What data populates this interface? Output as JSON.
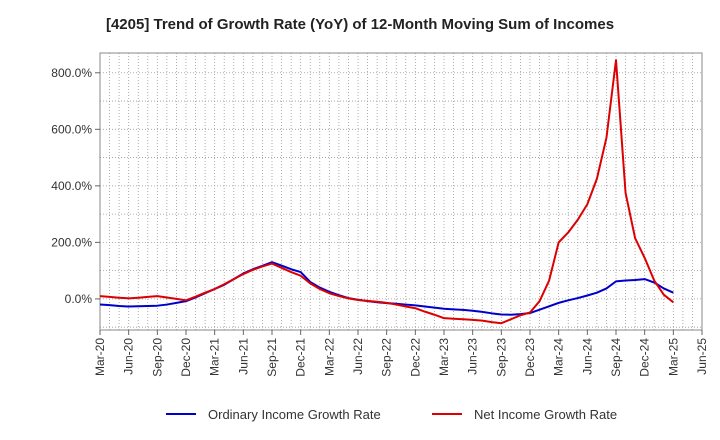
{
  "chart_data": {
    "type": "line",
    "title": "[4205]  Trend of Growth Rate (YoY) of 12-Month Moving Sum of Incomes",
    "xlabel": "",
    "ylabel": "",
    "ylim": [
      -110,
      870
    ],
    "y_ticks": [
      0,
      200,
      400,
      600,
      800
    ],
    "y_tick_labels": [
      "0.0%",
      "200.0%",
      "400.0%",
      "600.0%",
      "800.0%"
    ],
    "x_tick_labels": [
      "Mar-20",
      "Jun-20",
      "Sep-20",
      "Dec-20",
      "Mar-21",
      "Jun-21",
      "Sep-21",
      "Dec-21",
      "Mar-22",
      "Jun-22",
      "Sep-22",
      "Dec-22",
      "Mar-23",
      "Jun-23",
      "Sep-23",
      "Dec-23",
      "Mar-24",
      "Jun-24",
      "Sep-24",
      "Dec-24",
      "Mar-25",
      "Jun-25"
    ],
    "x": [
      "Mar-20",
      "Apr-20",
      "May-20",
      "Jun-20",
      "Jul-20",
      "Aug-20",
      "Sep-20",
      "Oct-20",
      "Nov-20",
      "Dec-20",
      "Jan-21",
      "Feb-21",
      "Mar-21",
      "Apr-21",
      "May-21",
      "Jun-21",
      "Jul-21",
      "Aug-21",
      "Sep-21",
      "Oct-21",
      "Nov-21",
      "Dec-21",
      "Jan-22",
      "Feb-22",
      "Mar-22",
      "Apr-22",
      "May-22",
      "Jun-22",
      "Jul-22",
      "Aug-22",
      "Sep-22",
      "Oct-22",
      "Nov-22",
      "Dec-22",
      "Jan-23",
      "Feb-23",
      "Mar-23",
      "Apr-23",
      "May-23",
      "Jun-23",
      "Jul-23",
      "Aug-23",
      "Sep-23",
      "Oct-23",
      "Nov-23",
      "Dec-23",
      "Jan-24",
      "Feb-24",
      "Mar-24",
      "Apr-24",
      "May-24",
      "Jun-24",
      "Jul-24",
      "Aug-24",
      "Sep-24",
      "Oct-24",
      "Nov-24",
      "Dec-24",
      "Jan-25",
      "Feb-25",
      "Mar-25"
    ],
    "grid": true,
    "legend_position": "bottom",
    "series": [
      {
        "name": "Ordinary Income Growth Rate",
        "color": "#0000cc",
        "values": [
          -20,
          -22,
          -25,
          -27,
          -26,
          -25,
          -24,
          -20,
          -14,
          -8,
          5,
          20,
          35,
          50,
          70,
          90,
          105,
          117,
          130,
          118,
          105,
          95,
          60,
          40,
          25,
          13,
          3,
          -3,
          -8,
          -12,
          -15,
          -17,
          -20,
          -23,
          -27,
          -31,
          -35,
          -37,
          -39,
          -42,
          -46,
          -51,
          -55,
          -56,
          -54,
          -50,
          -38,
          -26,
          -14,
          -5,
          3,
          12,
          22,
          37,
          62,
          65,
          67,
          70,
          58,
          37,
          22
        ]
      },
      {
        "name": "Net Income Growth Rate",
        "color": "#dd0000",
        "values": [
          10,
          7,
          4,
          2,
          4,
          7,
          10,
          5,
          0,
          -5,
          8,
          22,
          35,
          52,
          70,
          88,
          103,
          115,
          125,
          110,
          95,
          82,
          55,
          35,
          20,
          10,
          2,
          -4,
          -7,
          -10,
          -14,
          -20,
          -27,
          -33,
          -45,
          -56,
          -68,
          -70,
          -72,
          -74,
          -77,
          -82,
          -86,
          -72,
          -58,
          -48,
          -8,
          65,
          200,
          235,
          280,
          335,
          425,
          570,
          845,
          375,
          215,
          145,
          65,
          15,
          -12
        ]
      }
    ]
  }
}
